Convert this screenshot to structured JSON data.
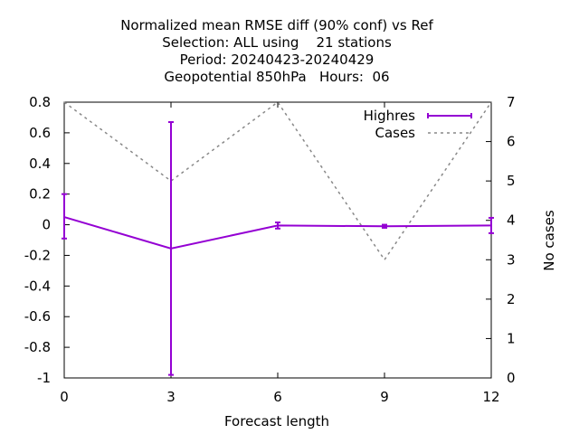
{
  "chart_data": {
    "type": "line",
    "title_lines": [
      "Normalized mean RMSE diff (90% conf) vs Ref",
      "Selection: ALL using    21 stations",
      "Period: 20240423-20240429",
      "Geopotential 850hPa   Hours:  06"
    ],
    "xlabel": "Forecast length",
    "ylabel": "",
    "y2label": "No cases",
    "xlim": [
      0,
      12
    ],
    "ylim": [
      -1,
      0.8
    ],
    "y2lim": [
      0,
      7
    ],
    "x_ticks": [
      0,
      3,
      6,
      9,
      12
    ],
    "x_tick_labels": [
      "0",
      "3",
      "6",
      "9",
      "12"
    ],
    "y_ticks": [
      -1,
      -0.8,
      -0.6,
      -0.4,
      -0.2,
      0,
      0.2,
      0.4,
      0.6,
      0.8
    ],
    "y_tick_labels": [
      "-1",
      "-0.8",
      "-0.6",
      "-0.4",
      "-0.2",
      "0",
      "0.2",
      "0.4",
      "0.6",
      "0.8"
    ],
    "y2_ticks": [
      0,
      1,
      2,
      3,
      4,
      5,
      6,
      7
    ],
    "y2_tick_labels": [
      "0",
      "1",
      "2",
      "3",
      "4",
      "5",
      "6",
      "7"
    ],
    "grid": false,
    "legend_position": "top-right",
    "series": [
      {
        "name": "Highres",
        "axis": "y",
        "color": "#9400d3",
        "style": "solid-errorbars",
        "x": [
          0,
          3,
          6,
          9,
          12
        ],
        "y": [
          0.05,
          -0.155,
          -0.005,
          -0.01,
          -0.005
        ],
        "err_low": [
          -0.09,
          -0.98,
          -0.025,
          -0.02,
          -0.055
        ],
        "err_high": [
          0.2,
          0.67,
          0.015,
          0.0,
          0.045
        ]
      },
      {
        "name": "Cases",
        "axis": "y2",
        "color": "#888888",
        "style": "dashed",
        "x": [
          0,
          3,
          6,
          9,
          12
        ],
        "y": [
          7,
          5,
          7,
          3,
          7
        ]
      }
    ]
  }
}
